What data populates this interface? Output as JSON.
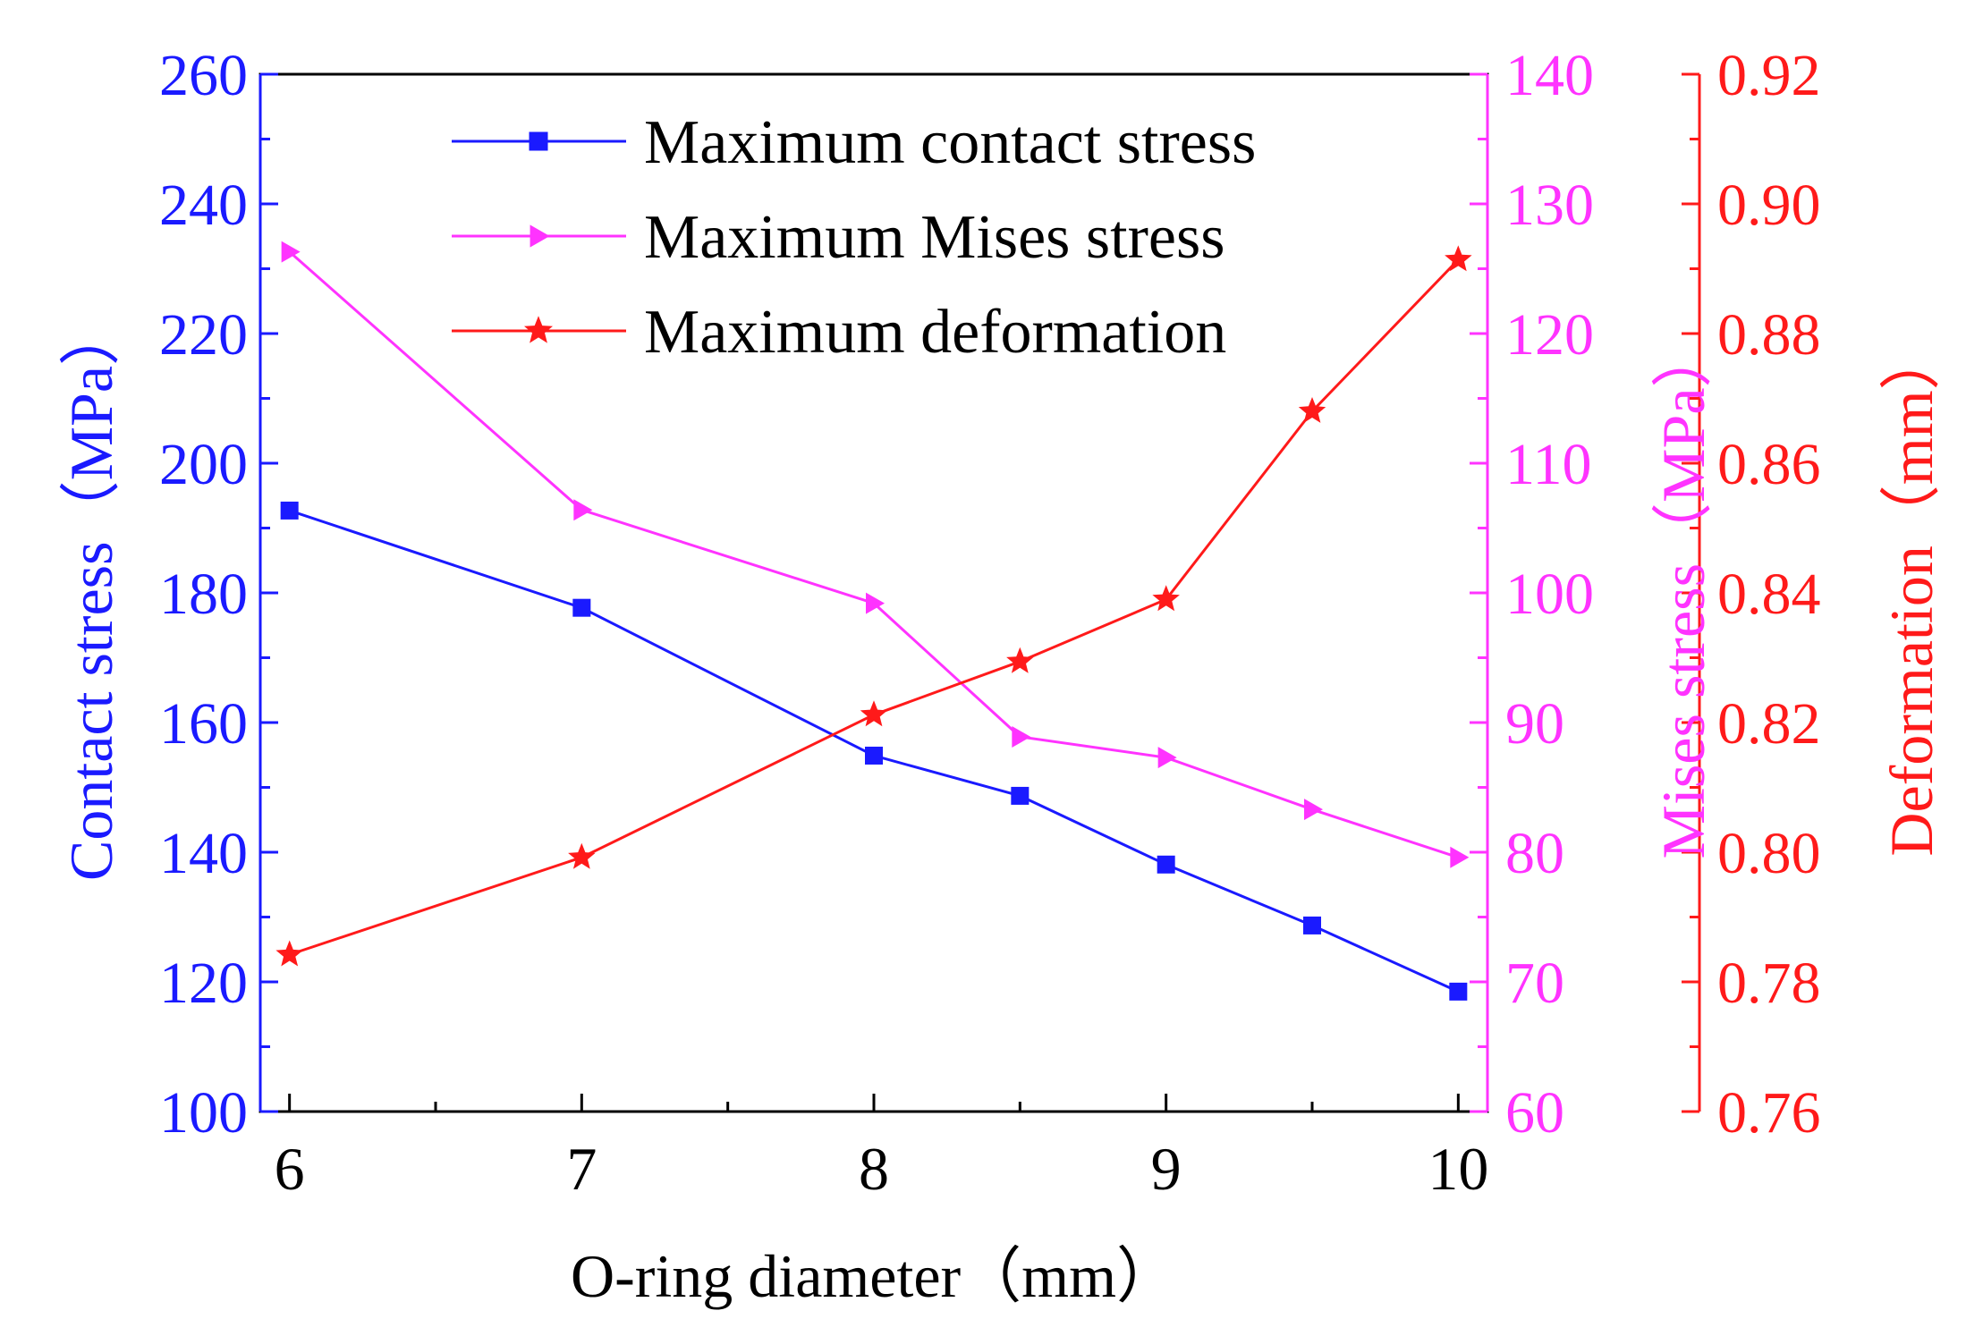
{
  "chart_data": {
    "type": "line",
    "x": [
      6,
      7,
      8,
      8.5,
      9,
      9.5,
      10
    ],
    "xlabel": "O-ring diameter（mm）",
    "xlim": [
      5.9,
      10.1
    ],
    "xticks": [
      6,
      7,
      8,
      9,
      10
    ],
    "xtick_labels": [
      "6",
      "7",
      "8",
      "9",
      "10"
    ],
    "axes": {
      "left": {
        "label": "Contact stress（MPa）",
        "ylim": [
          100,
          260
        ],
        "ticks": [
          100,
          120,
          140,
          160,
          180,
          200,
          220,
          240,
          260
        ],
        "tick_labels": [
          "100",
          "120",
          "140",
          "160",
          "180",
          "200",
          "220",
          "240",
          "260"
        ],
        "color": "#1a1aff"
      },
      "right1": {
        "label": "Mises stress（MPa）",
        "ylim": [
          60,
          140
        ],
        "ticks": [
          60,
          70,
          80,
          90,
          100,
          110,
          120,
          130,
          140
        ],
        "tick_labels": [
          "60",
          "70",
          "80",
          "90",
          "100",
          "110",
          "120",
          "130",
          "140"
        ],
        "color": "#ff33ff"
      },
      "right2": {
        "label": "Deformation（mm）",
        "ylim": [
          0.76,
          0.92
        ],
        "ticks": [
          0.76,
          0.78,
          0.8,
          0.82,
          0.84,
          0.86,
          0.88,
          0.9,
          0.92
        ],
        "tick_labels": [
          "0.76",
          "0.78",
          "0.80",
          "0.82",
          "0.84",
          "0.86",
          "0.88",
          "0.90",
          "0.92"
        ],
        "color": "#ff1a1a"
      }
    },
    "series": [
      {
        "name": "Maximum contact stress",
        "axis": "left",
        "marker": "square",
        "color": "#1a1aff",
        "values": [
          192.7,
          177.7,
          154.9,
          148.7,
          138.1,
          128.7,
          118.5
        ]
      },
      {
        "name": "Maximum Mises stress",
        "axis": "right1",
        "marker": "triangle-right",
        "color": "#ff33ff",
        "values": [
          126.3,
          106.4,
          99.2,
          88.9,
          87.3,
          83.3,
          79.6
        ]
      },
      {
        "name": "Maximum deformation",
        "axis": "right2",
        "marker": "star",
        "color": "#ff1a1a",
        "values": [
          0.7842,
          0.7992,
          0.8212,
          0.8294,
          0.839,
          0.868,
          0.8914
        ]
      }
    ],
    "legend_position": "top"
  }
}
